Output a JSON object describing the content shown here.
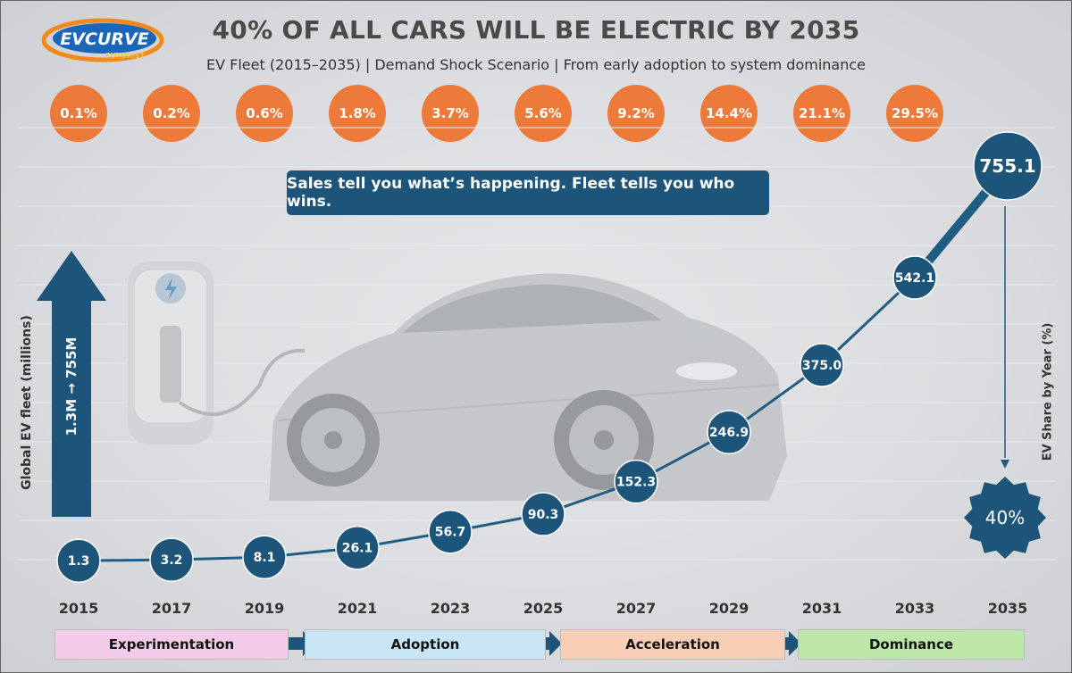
{
  "logo": {
    "text_top": "EVCURVE",
    "text_bottom": "FUTURIST"
  },
  "title": "40% OF ALL CARS WILL BE ELECTRIC BY 2035",
  "subtitle": "EV Fleet (2015–2035) | Demand Shock Scenario | From early adoption to system dominance",
  "callout": "Sales tell you what’s happening. Fleet tells you who wins.",
  "left_axis_label": "Global EV fleet (millions)",
  "right_axis_label": "EV Share by Year (%)",
  "growth_arrow_label": "1.3M → 755M",
  "final_share_badge": "40%",
  "shares": [
    "0.1%",
    "0.2%",
    "0.6%",
    "1.8%",
    "3.7%",
    "5.6%",
    "9.2%",
    "14.4%",
    "21.1%",
    "29.5%"
  ],
  "phases": [
    {
      "label": "Experimentation",
      "color": "#f4cce9"
    },
    {
      "label": "Adoption",
      "color": "#c8e6f5"
    },
    {
      "label": "Acceleration",
      "color": "#f8cfb6"
    },
    {
      "label": "Dominance",
      "color": "#bde8a7"
    }
  ],
  "colors": {
    "navy": "#1c5579",
    "orange": "#ec7a3a",
    "line": "#1f5e82"
  },
  "chart_data": {
    "type": "line",
    "title": "40% OF ALL CARS WILL BE ELECTRIC BY 2035",
    "xlabel": "",
    "ylabel": "Global EV fleet (millions)",
    "x": [
      "2015",
      "2017",
      "2019",
      "2021",
      "2023",
      "2025",
      "2027",
      "2029",
      "2031",
      "2033",
      "2035"
    ],
    "values": [
      1.3,
      3.2,
      8.1,
      26.1,
      56.7,
      90.3,
      152.3,
      246.9,
      375.0,
      542.1,
      755.1
    ],
    "labels": [
      "1.3",
      "3.2",
      "8.1",
      "26.1",
      "56.7",
      "90.3",
      "152.3",
      "246.9",
      "375.0",
      "542.1",
      "755.1"
    ],
    "ylim": [
      0,
      755.1
    ],
    "grid": true
  }
}
